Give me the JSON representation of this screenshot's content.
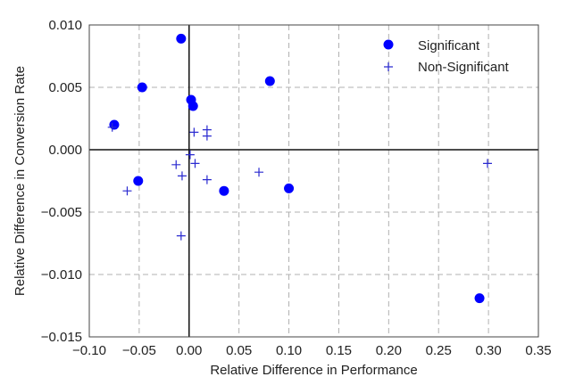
{
  "chart_data": {
    "type": "scatter",
    "xlabel": "Relative Difference in Performance",
    "ylabel": "Relative Difference in Conversion Rate",
    "xlim": [
      -0.1,
      0.35
    ],
    "ylim": [
      -0.015,
      0.01
    ],
    "grid": true,
    "legend_position": "top-right",
    "x_ticks": [
      "−0.10",
      "−0.05",
      "0.00",
      "0.05",
      "0.10",
      "0.15",
      "0.20",
      "0.25",
      "0.30",
      "0.35"
    ],
    "y_ticks": [
      "0.010",
      "0.005",
      "0.000",
      "−0.005",
      "−0.010",
      "−0.015"
    ],
    "series": [
      {
        "name": "Significant",
        "marker": "circle",
        "color": "#0000ff",
        "points": [
          [
            -0.075,
            0.002
          ],
          [
            -0.047,
            0.005
          ],
          [
            -0.008,
            0.0089
          ],
          [
            0.002,
            0.004
          ],
          [
            0.004,
            0.0035
          ],
          [
            0.081,
            0.0055
          ],
          [
            -0.051,
            -0.0025
          ],
          [
            0.035,
            -0.0033
          ],
          [
            0.1,
            -0.0031
          ],
          [
            0.291,
            -0.0119
          ]
        ]
      },
      {
        "name": "Non-Significant",
        "marker": "plus",
        "color": "#2a2ad0",
        "points": [
          [
            -0.077,
            0.0018
          ],
          [
            -0.062,
            -0.0033
          ],
          [
            -0.013,
            -0.0012
          ],
          [
            -0.007,
            -0.0021
          ],
          [
            0.001,
            -0.0004
          ],
          [
            0.005,
            0.0014
          ],
          [
            0.006,
            -0.0011
          ],
          [
            0.018,
            0.0016
          ],
          [
            0.018,
            0.0011
          ],
          [
            0.018,
            -0.0024
          ],
          [
            0.07,
            -0.0018
          ],
          [
            -0.008,
            -0.0069
          ],
          [
            0.299,
            -0.0011
          ]
        ]
      }
    ]
  }
}
